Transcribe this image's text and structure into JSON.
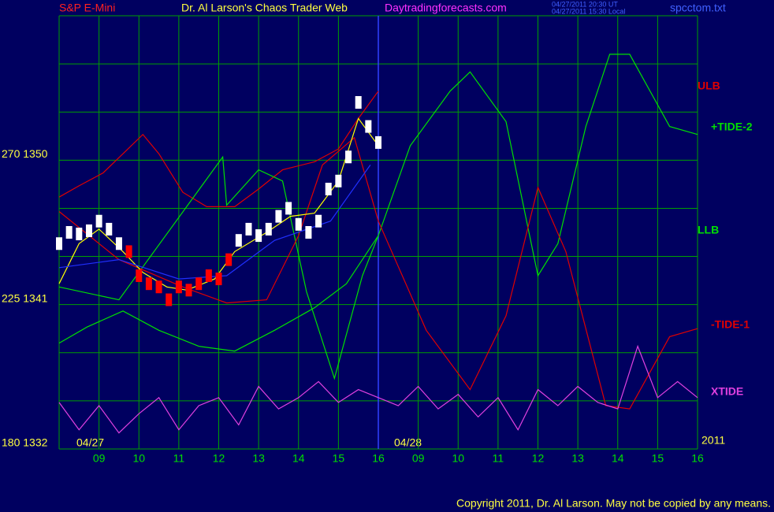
{
  "chart_data": {
    "type": "line",
    "symbol": "S&P E-Mini",
    "title": "Dr. Al Larson's Chaos Trader Web",
    "site": "Daytradingforecasts.com",
    "timestamps": [
      "04/27/2011 20:30 UT",
      "04/27/2011 15:30 Local"
    ],
    "file": "spcctom.txt",
    "date_labels": [
      "04/27",
      "04/28",
      "2011"
    ],
    "copyright": "Copyright 2011, Dr. Al Larson. May not be copied by any means.",
    "xlim": [
      0,
      16
    ],
    "xticks": [
      {
        "value": 1,
        "label": "09"
      },
      {
        "value": 2,
        "label": "10"
      },
      {
        "value": 3,
        "label": "11"
      },
      {
        "value": 4,
        "label": "12"
      },
      {
        "value": 5,
        "label": "13"
      },
      {
        "value": 6,
        "label": "14"
      },
      {
        "value": 7,
        "label": "15"
      },
      {
        "value": 8,
        "label": "16"
      },
      {
        "value": 9,
        "label": "09"
      },
      {
        "value": 10,
        "label": "10"
      },
      {
        "value": 11,
        "label": "11"
      },
      {
        "value": 12,
        "label": "12"
      },
      {
        "value": 13,
        "label": "13"
      },
      {
        "value": 14,
        "label": "14"
      },
      {
        "value": 15,
        "label": "15"
      },
      {
        "value": 16,
        "label": "16"
      }
    ],
    "ylim": [
      1332,
      1359
    ],
    "yticks": [
      {
        "value": 1332,
        "label": "180  1332"
      },
      {
        "value": 1335,
        "label": null
      },
      {
        "value": 1338,
        "label": null
      },
      {
        "value": 1341,
        "label": "225  1341"
      },
      {
        "value": 1344,
        "label": null
      },
      {
        "value": 1347,
        "label": null
      },
      {
        "value": 1350,
        "label": "270  1350"
      },
      {
        "value": 1353,
        "label": null
      },
      {
        "value": 1356,
        "label": null
      },
      {
        "value": 1359,
        "label": null
      }
    ],
    "grid": true,
    "price": {
      "x": [
        0,
        0.25,
        0.5,
        0.75,
        1,
        1.25,
        1.5,
        1.75,
        2,
        2.25,
        2.5,
        2.75,
        3,
        3.25,
        3.5,
        3.75,
        4,
        4.25,
        4.5,
        4.75,
        5,
        5.25,
        5.5,
        5.75,
        6,
        6.25,
        6.5,
        6.75,
        7,
        7.25,
        7.5,
        7.75,
        8
      ],
      "values": [
        1344.8,
        1345.5,
        1345.4,
        1345.6,
        1346.2,
        1345.7,
        1344.8,
        1344.3,
        1342.8,
        1342.3,
        1342.1,
        1341.3,
        1342.1,
        1341.9,
        1342.3,
        1342.8,
        1342.6,
        1343.8,
        1345.0,
        1345.7,
        1345.3,
        1345.7,
        1346.5,
        1347.0,
        1346.0,
        1345.5,
        1346.2,
        1348.2,
        1348.7,
        1350.2,
        1353.6,
        1352.1,
        1351.1
      ],
      "colors": [
        "#ffffff",
        "#ffffff",
        "#ffffff",
        "#ffffff",
        "#ffffff",
        "#ffffff",
        "#ffffff",
        "#ff0000",
        "#ff0000",
        "#ff0000",
        "#ff0000",
        "#ff0000",
        "#ff0000",
        "#ff0000",
        "#ff0000",
        "#ff0000",
        "#ff0000",
        "#ff0000",
        "#ffffff",
        "#ffffff",
        "#ffffff",
        "#ffffff",
        "#ffffff",
        "#ffffff",
        "#ffffff",
        "#ffffff",
        "#ffffff",
        "#ffffff",
        "#ffffff",
        "#ffffff",
        "#ffffff",
        "#ffffff",
        "#ffffff"
      ]
    },
    "series": [
      {
        "name": "ULB",
        "color": "#e00000",
        "x": [
          0,
          0.5,
          1.1,
          1.6,
          2.1,
          2.5,
          3.1,
          3.7,
          4.4,
          5.0,
          5.6,
          6.4,
          7.0,
          7.5,
          8.0
        ],
        "values": [
          1347.7,
          1348.4,
          1349.2,
          1350.4,
          1351.6,
          1350.4,
          1348.0,
          1347.1,
          1347.1,
          1348.2,
          1349.4,
          1349.9,
          1350.7,
          1352.6,
          1354.3
        ]
      },
      {
        "name": "LLB",
        "color": "#00e000",
        "x": [
          0,
          0.7,
          1.6,
          2.5,
          3.5,
          4.4,
          5.4,
          6.4,
          7.2,
          8.0
        ],
        "values": [
          1338.6,
          1339.6,
          1340.6,
          1339.4,
          1338.4,
          1338.1,
          1339.4,
          1340.8,
          1342.3,
          1345.3
        ]
      },
      {
        "name": "+TIDE-2",
        "color": "#00e000",
        "x": [
          0,
          1.5,
          4.1,
          4.2,
          5.0,
          5.6,
          6.2,
          6.9,
          7.6,
          8.0,
          8.8,
          9.8,
          10.3,
          11.2,
          12.0,
          12.5,
          13.2,
          13.8,
          14.3,
          15.3,
          16.0
        ],
        "values": [
          1342.1,
          1341.3,
          1350.2,
          1347.2,
          1349.4,
          1348.7,
          1341.8,
          1336.4,
          1342.8,
          1345.3,
          1350.9,
          1354.3,
          1355.5,
          1352.4,
          1342.8,
          1344.8,
          1352.1,
          1356.6,
          1356.6,
          1352.1,
          1351.6
        ]
      },
      {
        "name": "-TIDE-1",
        "color": "#e00000",
        "x": [
          0,
          1.5,
          3.1,
          4.2,
          5.2,
          6.0,
          6.6,
          7.4,
          8.0,
          9.2,
          10.3,
          11.2,
          12.0,
          12.7,
          13.7,
          14.3,
          15.3,
          16.0
        ],
        "values": [
          1346.8,
          1343.8,
          1342.1,
          1341.1,
          1341.3,
          1345.3,
          1349.7,
          1351.4,
          1346.2,
          1339.4,
          1335.7,
          1340.3,
          1348.3,
          1344.3,
          1334.7,
          1334.5,
          1339.0,
          1339.5
        ]
      },
      {
        "name": "XTIDE",
        "color": "#e040e0",
        "x": [
          0,
          0.5,
          1,
          1.5,
          2,
          2.5,
          3,
          3.5,
          4,
          4.5,
          5,
          5.5,
          6,
          6.5,
          7,
          7.5,
          8,
          8.5,
          9,
          9.5,
          10,
          10.5,
          11,
          11.5,
          12,
          12.5,
          13,
          13.5,
          14,
          14.5,
          15,
          15.5,
          16
        ],
        "values": [
          1334.9,
          1333.2,
          1334.7,
          1333.0,
          1334.2,
          1335.2,
          1333.2,
          1334.7,
          1335.2,
          1333.5,
          1335.9,
          1334.5,
          1335.2,
          1336.2,
          1334.9,
          1335.7,
          1335.2,
          1334.7,
          1335.9,
          1334.5,
          1335.4,
          1334.0,
          1335.2,
          1333.2,
          1335.7,
          1334.7,
          1335.9,
          1334.9,
          1334.5,
          1338.4,
          1335.2,
          1336.2,
          1335.2
        ]
      },
      {
        "color": "#ffff00",
        "x": [
          0,
          0.5,
          1.0,
          1.6,
          2.1,
          2.7,
          3.2,
          3.9,
          4.4,
          5.2,
          5.8,
          6.4,
          7.0,
          7.5,
          8.0
        ],
        "values": [
          1342.3,
          1344.8,
          1345.7,
          1344.3,
          1343.0,
          1342.1,
          1341.9,
          1342.6,
          1344.3,
          1345.5,
          1346.5,
          1346.7,
          1348.7,
          1352.6,
          1350.9
        ]
      },
      {
        "color": "#2030ff",
        "x": [
          0,
          1.5,
          3.0,
          4.2,
          5.4,
          6.8,
          7.8
        ],
        "values": [
          1343.3,
          1343.8,
          1342.6,
          1342.8,
          1345.0,
          1346.2,
          1349.7
        ]
      }
    ]
  }
}
